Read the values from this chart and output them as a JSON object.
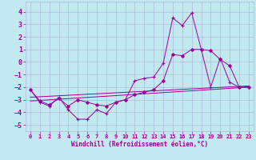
{
  "xlabel": "Windchill (Refroidissement éolien,°C)",
  "background_color": "#c2e8f0",
  "grid_color": "#b0b8d8",
  "line_color": "#990099",
  "xlim": [
    -0.5,
    23.5
  ],
  "ylim": [
    -5.5,
    4.8
  ],
  "yticks": [
    -5,
    -4,
    -3,
    -2,
    -1,
    0,
    1,
    2,
    3,
    4
  ],
  "xticks": [
    0,
    1,
    2,
    3,
    4,
    5,
    6,
    7,
    8,
    9,
    10,
    11,
    12,
    13,
    14,
    15,
    16,
    17,
    18,
    19,
    20,
    21,
    22,
    23
  ],
  "line1_x": [
    0,
    1,
    2,
    3,
    4,
    5,
    6,
    7,
    8,
    9,
    10,
    11,
    12,
    13,
    14,
    15,
    16,
    17,
    18,
    19,
    20,
    21,
    22,
    23
  ],
  "line1_y": [
    -2.2,
    -3.2,
    -3.5,
    -2.8,
    -3.8,
    -4.55,
    -4.55,
    -3.8,
    -4.1,
    -3.2,
    -3.0,
    -1.5,
    -1.3,
    -1.2,
    -0.1,
    3.5,
    2.9,
    3.9,
    1.0,
    -2.0,
    0.3,
    -1.6,
    -2.0,
    -2.0
  ],
  "line2_x": [
    0,
    1,
    2,
    3,
    4,
    5,
    6,
    7,
    8,
    9,
    10,
    11,
    12,
    13,
    14,
    15,
    16,
    17,
    18,
    19,
    20,
    21,
    22,
    23
  ],
  "line2_y": [
    -2.2,
    -3.1,
    -3.4,
    -2.9,
    -3.5,
    -3.0,
    -3.2,
    -3.4,
    -3.5,
    -3.2,
    -3.0,
    -2.6,
    -2.4,
    -2.2,
    -1.5,
    0.6,
    0.5,
    1.0,
    1.0,
    0.9,
    0.2,
    -0.3,
    -2.0,
    -2.0
  ],
  "line3_x": [
    0,
    23
  ],
  "line3_y": [
    -2.8,
    -1.9
  ],
  "line4_x": [
    0,
    23
  ],
  "line4_y": [
    -3.1,
    -2.0
  ]
}
